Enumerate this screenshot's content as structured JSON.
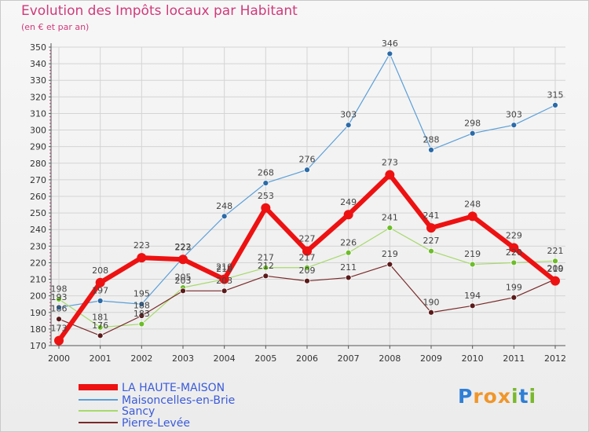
{
  "title": "Evolution des Impôts locaux par Habitant",
  "subtitle": "(en € et par an)",
  "logo": {
    "text": "Proxiti",
    "letters": [
      "P",
      "r",
      "o",
      "x",
      "i",
      "t",
      "i"
    ],
    "colors": [
      "#2f7fd6",
      "#f0962a",
      "#f0962a",
      "#f0962a",
      "#79b82c",
      "#2f7fd6",
      "#79b82c"
    ]
  },
  "chart_data": {
    "type": "line",
    "x": [
      "2000",
      "2001",
      "2002",
      "2003",
      "2004",
      "2005",
      "2006",
      "2007",
      "2008",
      "2009",
      "2010",
      "2011",
      "2012"
    ],
    "ylim": [
      170,
      350
    ],
    "yticks": [
      170,
      180,
      190,
      200,
      210,
      220,
      230,
      240,
      250,
      260,
      270,
      280,
      290,
      300,
      310,
      320,
      330,
      340,
      350
    ],
    "grid": true,
    "legend_position": "bottom-left",
    "series": [
      {
        "name": "Maisoncelles-en-Brie",
        "color": "#5b9fd8",
        "marker": "#2b6ba8",
        "width": 1.2,
        "radius": 3.5,
        "values": [
          193,
          197,
          195,
          223,
          248,
          268,
          276,
          303,
          346,
          288,
          298,
          303,
          315
        ],
        "labels": [
          "193",
          "197",
          "195",
          "223",
          "248",
          "268",
          "276",
          "303",
          "346",
          "288",
          "298",
          "303",
          "315"
        ]
      },
      {
        "name": "Sancy",
        "color": "#a6d96a",
        "marker": "#6dbd2a",
        "width": 1.2,
        "radius": 3.5,
        "values": [
          198,
          181,
          183,
          205,
          210,
          217,
          217,
          226,
          241,
          227,
          219,
          220,
          221
        ],
        "labels": [
          "198",
          "181",
          "183",
          "205",
          "210",
          "217",
          "217",
          "226",
          "241",
          "227",
          "219",
          "220",
          "221"
        ]
      },
      {
        "name": "Pierre-Levée",
        "color": "#7a2a2a",
        "marker": "#5a1a1a",
        "width": 1.2,
        "radius": 3.5,
        "values": [
          186,
          176,
          188,
          203,
          203,
          212,
          209,
          211,
          219,
          190,
          194,
          199,
          210
        ],
        "labels": [
          "186",
          "176",
          "188",
          "203",
          "203",
          "212",
          "209",
          "211",
          "219",
          "190",
          "194",
          "199",
          "210"
        ]
      },
      {
        "name": "LA HAUTE-MAISON",
        "color": "#ee1111",
        "marker": "#ee1111",
        "width": 6,
        "radius": 6,
        "values": [
          173,
          208,
          223,
          222,
          210,
          253,
          227,
          249,
          273,
          241,
          248,
          229,
          209
        ],
        "labels": [
          "173",
          "208",
          "223",
          "222",
          "210",
          "253",
          "227",
          "249",
          "273",
          "241",
          "248",
          "229",
          "209"
        ]
      }
    ],
    "legend": [
      "LA HAUTE-MAISON",
      "Maisoncelles-en-Brie",
      "Sancy",
      "Pierre-Levée"
    ]
  }
}
